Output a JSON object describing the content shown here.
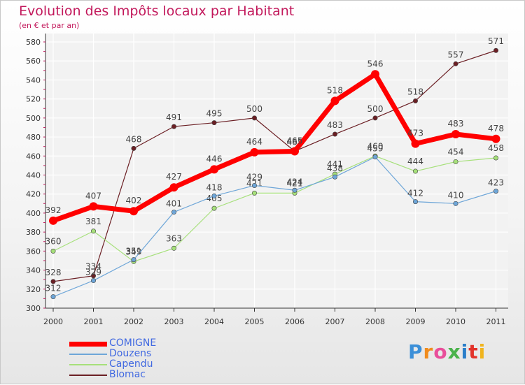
{
  "header": {
    "title": "Evolution des Impôts locaux par Habitant",
    "subtitle": "(en € et par an)"
  },
  "logo": {
    "text": "Proxiti"
  },
  "chart_data": {
    "type": "line",
    "title": "Evolution des Impôts locaux par Habitant",
    "subtitle": "(en € et par an)",
    "xlabel": "",
    "ylabel": "",
    "x": [
      "2000",
      "2001",
      "2002",
      "2003",
      "2004",
      "2005",
      "2006",
      "2007",
      "2008",
      "2009",
      "2010",
      "2011"
    ],
    "ylim": [
      300,
      580
    ],
    "yticks": [
      300,
      320,
      340,
      360,
      380,
      400,
      420,
      440,
      460,
      480,
      500,
      520,
      540,
      560,
      580
    ],
    "grid": true,
    "legend_position": "bottom-left",
    "series": [
      {
        "name": "COMIGNE",
        "color": "#ff0000",
        "values": [
          392,
          407,
          402,
          427,
          446,
          464,
          465,
          518,
          546,
          473,
          483,
          478
        ]
      },
      {
        "name": "Douzens",
        "color": "#6ea6d8",
        "values": [
          312,
          329,
          351,
          401,
          418,
          429,
          424,
          438,
          459,
          412,
          410,
          423
        ]
      },
      {
        "name": "Capendu",
        "color": "#a6e07a",
        "values": [
          360,
          381,
          349,
          363,
          405,
          421,
          421,
          441,
          460,
          444,
          454,
          458
        ]
      },
      {
        "name": "Blomac",
        "color": "#6b1f24",
        "values": [
          328,
          334,
          468,
          491,
          495,
          500,
          465,
          483,
          500,
          518,
          557,
          571
        ]
      }
    ]
  }
}
